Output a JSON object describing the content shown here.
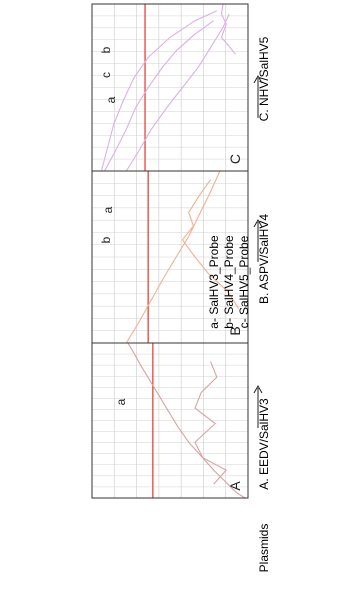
{
  "figure": {
    "plasmids_label": "Plasmids",
    "legend": [
      "a- SalHV3_Probe",
      "b- SalHV4_Probe",
      "c- SalHV5_Probe"
    ]
  },
  "colors": {
    "threshold": "#e8423b",
    "grid": "#d2d2d2",
    "frame": "#333333",
    "curve_A": "#d9a3a1",
    "curve_B": "#f2b190",
    "curve_C": "#dcb0e6",
    "text": "#222222"
  },
  "chart_data": [
    {
      "type": "line",
      "panel_letter": "A",
      "caption": "A. EEDV/SalHV3",
      "curve_labels": [
        "a"
      ],
      "series": [
        {
          "label": "a",
          "x": [
            0.0,
            0.04,
            0.1,
            0.18,
            0.27,
            0.36,
            0.46,
            0.56,
            0.66,
            0.76,
            0.86,
            0.95,
            1.0
          ],
          "y": [
            0.98,
            0.92,
            0.86,
            0.78,
            0.7,
            0.62,
            0.55,
            0.49,
            0.43,
            0.37,
            0.31,
            0.26,
            0.23
          ]
        },
        {
          "label": "",
          "x": [
            0.09,
            0.18,
            0.26,
            0.36,
            0.48,
            0.58,
            0.68,
            0.78,
            0.88
          ],
          "y": [
            0.78,
            0.86,
            0.71,
            0.66,
            0.79,
            0.66,
            0.7,
            0.8,
            0.76
          ]
        }
      ],
      "threshold": 0.39
    },
    {
      "type": "line",
      "panel_letter": "B",
      "caption": "B. ASPV/SalHV4",
      "curve_labels": [
        "b",
        "a"
      ],
      "series": [
        {
          "label": "a",
          "x": [
            0.0,
            0.12,
            0.25,
            0.38,
            0.5,
            0.62,
            0.75,
            0.88,
            1.0
          ],
          "y": [
            0.22,
            0.3,
            0.38,
            0.46,
            0.54,
            0.62,
            0.69,
            0.76,
            0.82
          ]
        },
        {
          "label": "b",
          "x": [
            0.2,
            0.3,
            0.4,
            0.5,
            0.6,
            0.68,
            0.76,
            0.86,
            0.95
          ],
          "y": [
            0.94,
            0.87,
            0.75,
            0.66,
            0.58,
            0.65,
            0.62,
            0.69,
            0.76
          ]
        }
      ],
      "threshold": 0.36
    },
    {
      "type": "line",
      "panel_letter": "C",
      "caption": "C. NHV/SalHV5",
      "curve_labels": [
        "a",
        "c",
        "b"
      ],
      "series": [
        {
          "label": "a",
          "x": [
            0.0,
            0.12,
            0.25,
            0.38,
            0.5,
            0.62,
            0.72,
            0.82,
            0.9
          ],
          "y": [
            0.08,
            0.15,
            0.22,
            0.28,
            0.36,
            0.45,
            0.54,
            0.66,
            0.78
          ]
        },
        {
          "label": "c",
          "x": [
            0.0,
            0.12,
            0.25,
            0.38,
            0.5,
            0.62,
            0.74,
            0.86,
            0.94
          ],
          "y": [
            0.22,
            0.3,
            0.38,
            0.48,
            0.58,
            0.68,
            0.76,
            0.84,
            0.88
          ]
        },
        {
          "label": "b",
          "x": [
            0.0,
            0.14,
            0.28,
            0.42,
            0.56,
            0.68,
            0.8,
            0.9,
            0.96
          ],
          "y": [
            0.06,
            0.1,
            0.14,
            0.2,
            0.27,
            0.36,
            0.5,
            0.66,
            0.8
          ]
        },
        {
          "label": "",
          "x": [
            0.7,
            0.8,
            0.88,
            0.94,
            1.0
          ],
          "y": [
            0.92,
            0.83,
            0.86,
            0.83,
            0.84
          ]
        }
      ],
      "threshold": 0.34
    }
  ]
}
